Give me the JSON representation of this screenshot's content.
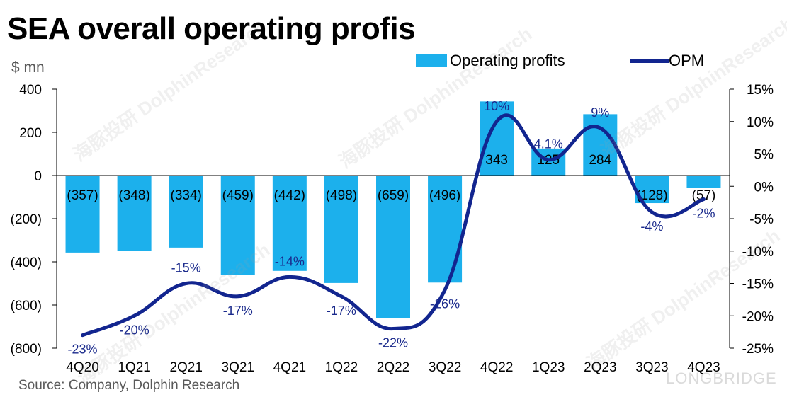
{
  "title": "SEA overall operating profis",
  "unit_label": "$ mn",
  "source": "Source: Company, Dolphin Research",
  "watermark_text": "海豚投研 DolphinResearch",
  "brand_text": "LONGBRIDGE",
  "legend": {
    "bar_label": "Operating profits",
    "line_label": "OPM"
  },
  "colors": {
    "bar": "#1cb0ec",
    "line": "#12258f",
    "axis": "#000000",
    "text": "#000000",
    "line_label": "#1a2a8c"
  },
  "chart_data": {
    "type": "bar",
    "categories": [
      "4Q20",
      "1Q21",
      "2Q21",
      "3Q21",
      "4Q21",
      "1Q22",
      "2Q22",
      "3Q22",
      "4Q22",
      "1Q23",
      "2Q23",
      "3Q23",
      "4Q23"
    ],
    "series": [
      {
        "name": "Operating profits",
        "type": "bar",
        "axis": "left",
        "values": [
          -357,
          -348,
          -334,
          -459,
          -442,
          -498,
          -659,
          -496,
          343,
          125,
          284,
          -128,
          -57
        ],
        "labels": [
          "(357)",
          "(348)",
          "(334)",
          "(459)",
          "(442)",
          "(498)",
          "(659)",
          "(496)",
          "343",
          "125",
          "284",
          "(128)",
          "(57)"
        ]
      },
      {
        "name": "OPM",
        "type": "line",
        "axis": "right",
        "values": [
          -23,
          -20,
          -15,
          -17,
          -14,
          -17,
          -22,
          -16,
          10,
          4.1,
          9,
          -4,
          -2
        ],
        "labels": [
          "-23%",
          "-20%",
          "-15%",
          "-17%",
          "-14%",
          "-17%",
          "-22%",
          "-16%",
          "10%",
          "4.1%",
          "9%",
          "-4%",
          "-2%"
        ]
      }
    ],
    "left_axis": {
      "ylim": [
        -800,
        400
      ],
      "ticks": [
        400,
        200,
        0,
        -200,
        -400,
        -600,
        -800
      ],
      "tick_labels": [
        "400",
        "200",
        "0",
        "(200)",
        "(400)",
        "(600)",
        "(800)"
      ]
    },
    "right_axis": {
      "ylim": [
        -25,
        15
      ],
      "ticks": [
        15,
        10,
        5,
        0,
        -5,
        -10,
        -15,
        -20,
        -25
      ],
      "tick_labels": [
        "15%",
        "10%",
        "5%",
        "0%",
        "-5%",
        "-10%",
        "-15%",
        "-20%",
        "-25%"
      ]
    },
    "grid": false,
    "legend_position": "top-right"
  }
}
